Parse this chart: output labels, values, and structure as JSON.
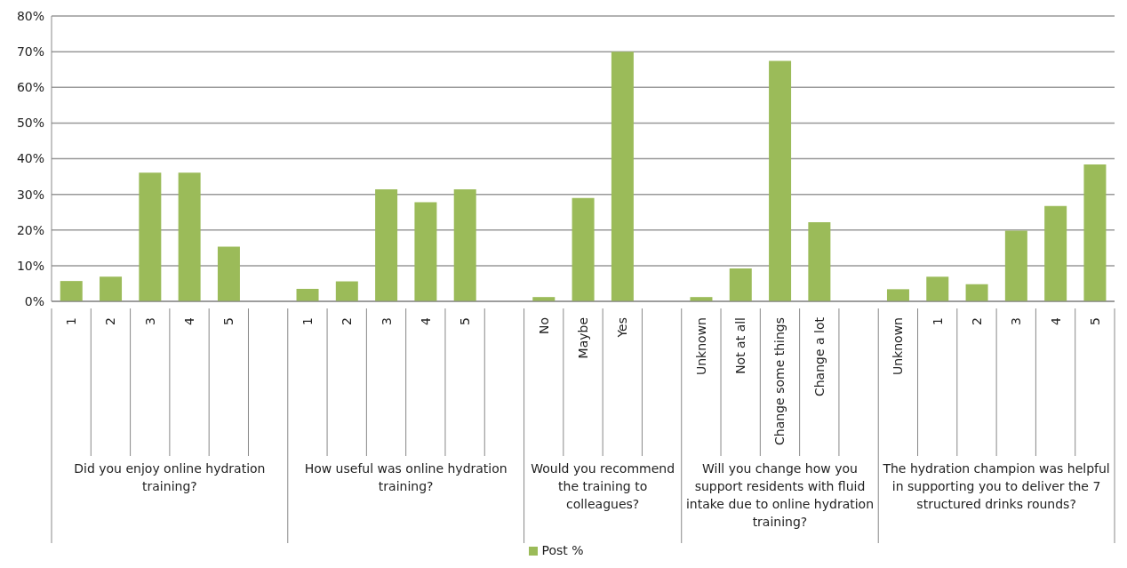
{
  "chart_data": {
    "type": "bar",
    "categories": [
      "1",
      "2",
      "3",
      "4",
      "5",
      null,
      "1",
      "2",
      "3",
      "4",
      "5",
      null,
      "No",
      "Maybe",
      "Yes",
      null,
      "Unknown",
      "Not at all",
      "Change some things",
      "Change a lot",
      null,
      "Unknown",
      "1",
      "2",
      "3",
      "4",
      "5"
    ],
    "series": [
      {
        "name": "Post %",
        "color": "#9bbb59",
        "values": [
          5.7,
          6.9,
          36.1,
          36.1,
          15.3,
          null,
          3.5,
          5.6,
          31.4,
          27.8,
          31.4,
          null,
          1.2,
          29.0,
          70.0,
          null,
          1.2,
          9.2,
          67.4,
          22.2,
          null,
          3.4,
          6.9,
          4.8,
          19.8,
          26.7,
          38.4
        ]
      }
    ],
    "ylim": [
      0,
      80
    ],
    "yticks": [
      {
        "value": 0,
        "label": "0%"
      },
      {
        "value": 10,
        "label": "10%"
      },
      {
        "value": 20,
        "label": "20%"
      },
      {
        "value": 30,
        "label": "30%"
      },
      {
        "value": 40,
        "label": "40%"
      },
      {
        "value": 50,
        "label": "50%"
      },
      {
        "value": 60,
        "label": "60%"
      },
      {
        "value": 70,
        "label": "70%"
      },
      {
        "value": 80,
        "label": "80%"
      }
    ],
    "grid": "y",
    "legend": "bottom",
    "annotations": [
      "Did you enjoy online hydration training?",
      "How useful was online hydration training?",
      "Would you recommend the training to colleagues?",
      "Will you change how you support residents with fluid intake due to online hydration training?",
      "The hydration champion was helpful in supporting you to deliver the 7 structured drinks rounds?"
    ]
  }
}
